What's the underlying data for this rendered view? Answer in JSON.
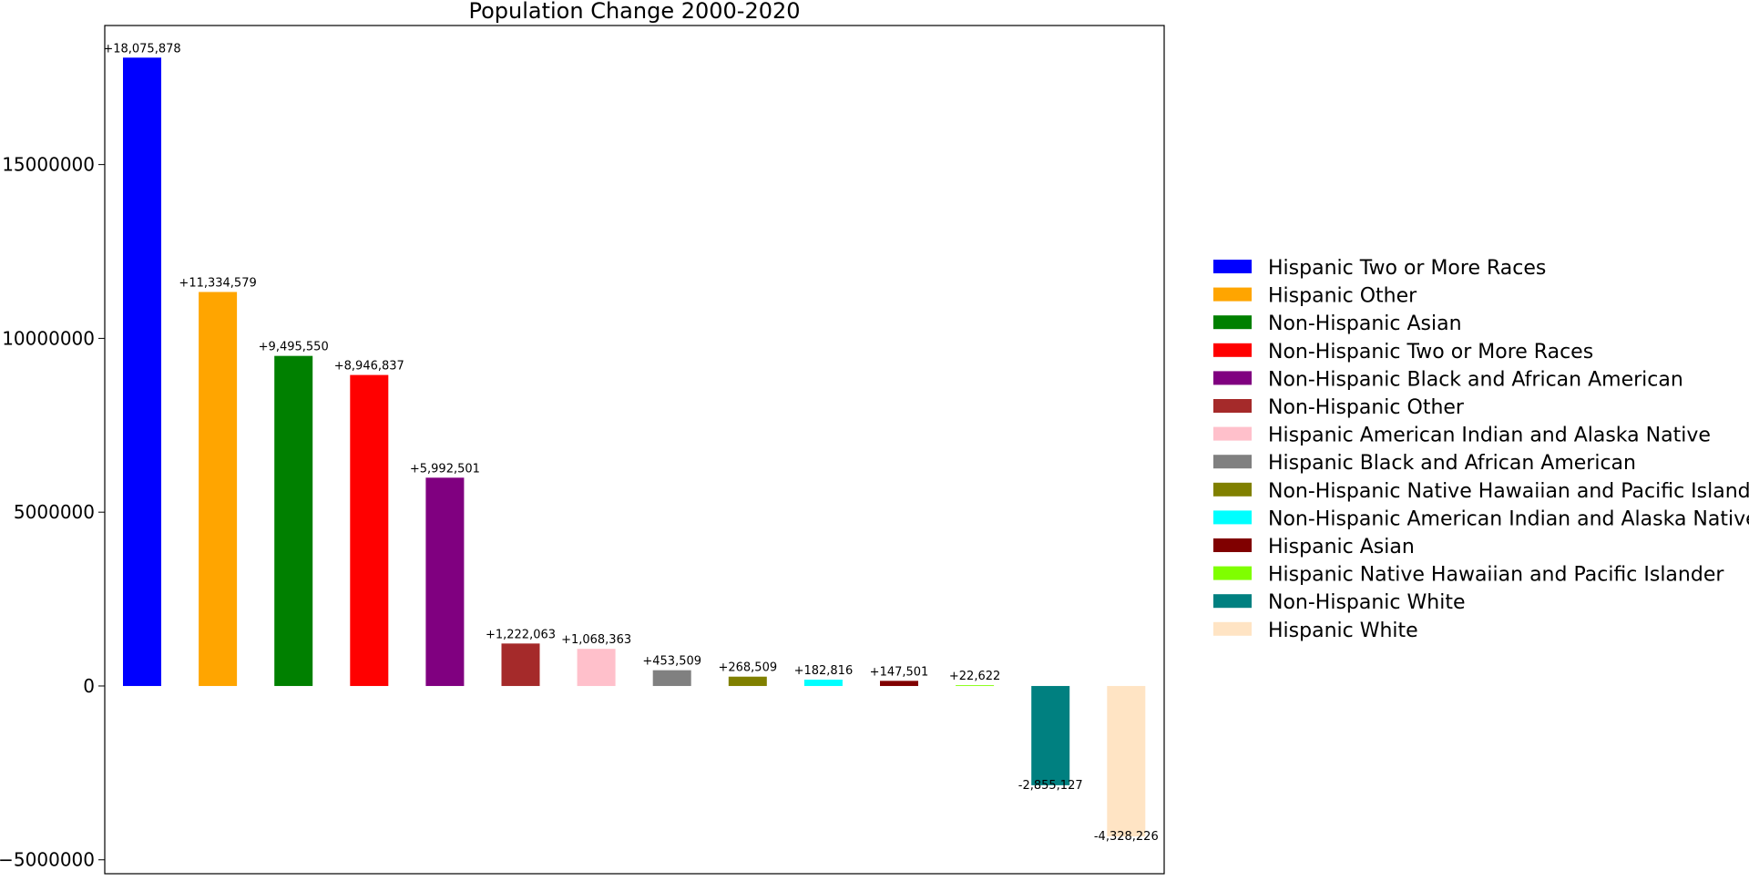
{
  "chart_data": {
    "type": "bar",
    "title": "Population Change 2000-2020",
    "xlabel": "",
    "ylabel": "",
    "ylim": [
      -5400000,
      19000000
    ],
    "yticks": [
      -5000000,
      0,
      5000000,
      10000000,
      15000000
    ],
    "ytick_labels": [
      "−5000000",
      "0",
      "5000000",
      "10000000",
      "15000000"
    ],
    "grid": false,
    "legend_position": "right",
    "categories": [
      "Hispanic Two or More Races",
      "Hispanic Other",
      "Non-Hispanic Asian",
      "Non-Hispanic Two or More Races",
      "Non-Hispanic Black and African American",
      "Non-Hispanic Other",
      "Hispanic American Indian and Alaska Native",
      "Hispanic Black and African American",
      "Non-Hispanic Native Hawaiian and Pacific Islander",
      "Non-Hispanic American Indian and Alaska Native",
      "Hispanic Asian",
      "Hispanic Native Hawaiian and Pacific Islander",
      "Non-Hispanic White",
      "Hispanic White"
    ],
    "values": [
      18075878,
      11334579,
      9495550,
      8946837,
      5992501,
      1222063,
      1068363,
      453509,
      268509,
      182816,
      147501,
      22622,
      -2855127,
      -4328226
    ],
    "labels": [
      "+18,075,878",
      "+11,334,579",
      "+9,495,550",
      "+8,946,837",
      "+5,992,501",
      "+1,222,063",
      "+1,068,363",
      "+453,509",
      "+268,509",
      "+182,816",
      "+147,501",
      "+22,622",
      "-2,855,127",
      "-4,328,226"
    ],
    "colors": [
      "#0000ff",
      "#ffa500",
      "#008000",
      "#ff0000",
      "#800080",
      "#a52a2a",
      "#ffc0cb",
      "#808080",
      "#808000",
      "#00ffff",
      "#800000",
      "#7fff00",
      "#008080",
      "#ffe4c4"
    ]
  }
}
